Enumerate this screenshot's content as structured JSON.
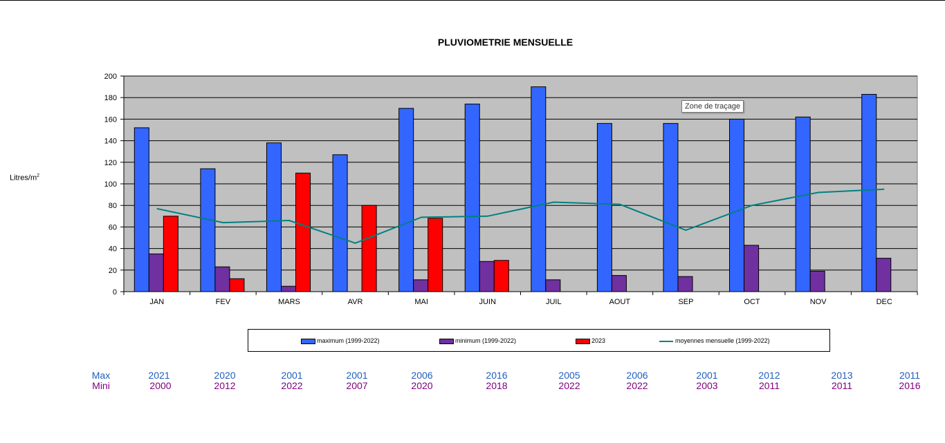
{
  "chart_data": {
    "type": "bar",
    "title": "PLUVIOMETRIE MENSUELLE",
    "ylabel": "Litres/m",
    "ylabel_sup": "2",
    "ylim": [
      0,
      200
    ],
    "yticks": [
      0,
      20,
      40,
      60,
      80,
      100,
      120,
      140,
      160,
      180,
      200
    ],
    "categories": [
      "JAN",
      "FEV",
      "MARS",
      "AVR",
      "MAI",
      "JUIN",
      "JUIL",
      "AOUT",
      "SEP",
      "OCT",
      "NOV",
      "DEC"
    ],
    "series": [
      {
        "name": "maximum (1999-2022)",
        "type": "bar",
        "color": "#3366ff",
        "values": [
          152,
          114,
          138,
          127,
          170,
          174,
          190,
          156,
          156,
          160,
          162,
          183
        ]
      },
      {
        "name": "minimum (1999-2022)",
        "type": "bar",
        "color": "#7030a0",
        "values": [
          35,
          23,
          5,
          0,
          11,
          28,
          11,
          15,
          14,
          43,
          19,
          31
        ]
      },
      {
        "name": "2023",
        "type": "bar",
        "color": "#ff0000",
        "values": [
          70,
          12,
          110,
          80,
          68,
          29,
          null,
          null,
          null,
          null,
          null,
          null
        ]
      },
      {
        "name": "moyennes mensuelle (1999-2022)",
        "type": "line",
        "color": "#008080",
        "values": [
          77,
          64,
          66,
          45,
          69,
          70,
          83,
          81,
          57,
          80,
          92,
          95
        ]
      }
    ],
    "plot_background": "#c0c0c0",
    "grid": true,
    "legend_position": "bottom"
  },
  "tooltip": "Zone de traçage",
  "year_table": {
    "max_label": "Max",
    "min_label": "Mini",
    "max_years": [
      "2021",
      "2020",
      "2001",
      "2001",
      "2006",
      "2016",
      "2005",
      "2006",
      "2001",
      "2012",
      "2013",
      "2011"
    ],
    "min_years": [
      "2000",
      "2012",
      "2022",
      "2007",
      "2020",
      "2018",
      "2022",
      "2022",
      "2003",
      "2011",
      "2011",
      "2016"
    ]
  }
}
